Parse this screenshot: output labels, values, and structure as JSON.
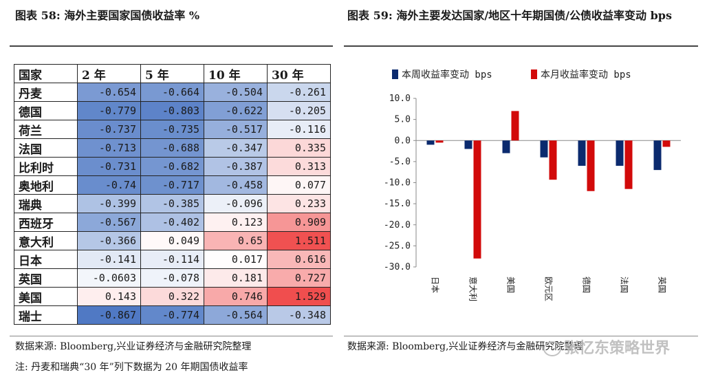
{
  "left_panel": {
    "title": "图表 58:  海外主要国家国债收益率  %",
    "headers": [
      "国家",
      "2 年",
      "5 年",
      "10 年",
      "30 年"
    ],
    "rows": [
      {
        "country": "丹麦",
        "values": [
          "-0.654",
          "-0.664",
          "-0.504",
          "-0.261"
        ],
        "nums": [
          -0.654,
          -0.664,
          -0.504,
          -0.261
        ]
      },
      {
        "country": "德国",
        "values": [
          "-0.779",
          "-0.803",
          "-0.622",
          "-0.205"
        ],
        "nums": [
          -0.779,
          -0.803,
          -0.622,
          -0.205
        ]
      },
      {
        "country": "荷兰",
        "values": [
          "-0.737",
          "-0.735",
          "-0.517",
          "-0.116"
        ],
        "nums": [
          -0.737,
          -0.735,
          -0.517,
          -0.116
        ]
      },
      {
        "country": "法国",
        "values": [
          "-0.713",
          "-0.688",
          "-0.347",
          "0.335"
        ],
        "nums": [
          -0.713,
          -0.688,
          -0.347,
          0.335
        ]
      },
      {
        "country": "比利时",
        "values": [
          "-0.731",
          "-0.682",
          "-0.387",
          "0.313"
        ],
        "nums": [
          -0.731,
          -0.682,
          -0.387,
          0.313
        ]
      },
      {
        "country": "奥地利",
        "values": [
          "-0.74",
          "-0.717",
          "-0.458",
          "0.077"
        ],
        "nums": [
          -0.74,
          -0.717,
          -0.458,
          0.077
        ]
      },
      {
        "country": "瑞典",
        "values": [
          "-0.399",
          "-0.385",
          "-0.096",
          "0.233"
        ],
        "nums": [
          -0.399,
          -0.385,
          -0.096,
          0.233
        ]
      },
      {
        "country": "西班牙",
        "values": [
          "-0.567",
          "-0.402",
          "0.123",
          "0.909"
        ],
        "nums": [
          -0.567,
          -0.402,
          0.123,
          0.909
        ]
      },
      {
        "country": "意大利",
        "values": [
          "-0.366",
          "0.049",
          "0.65",
          "1.511"
        ],
        "nums": [
          -0.366,
          0.049,
          0.65,
          1.511
        ]
      },
      {
        "country": "日本",
        "values": [
          "-0.141",
          "-0.114",
          "0.017",
          "0.616"
        ],
        "nums": [
          -0.141,
          -0.114,
          0.017,
          0.616
        ]
      },
      {
        "country": "英国",
        "values": [
          "-0.0603",
          "-0.078",
          "0.181",
          "0.727"
        ],
        "nums": [
          -0.0603,
          -0.078,
          0.181,
          0.727
        ]
      },
      {
        "country": "美国",
        "values": [
          "0.143",
          "0.322",
          "0.746",
          "1.529"
        ],
        "nums": [
          0.143,
          0.322,
          0.746,
          1.529
        ]
      },
      {
        "country": "瑞士",
        "values": [
          "-0.867",
          "-0.774",
          "-0.564",
          "-0.348"
        ],
        "nums": [
          -0.867,
          -0.774,
          -0.564,
          -0.348
        ]
      }
    ],
    "source": "数据来源:  Bloomberg,兴业证券经济与金融研究院整理",
    "note": "注:  丹麦和瑞典“30 年”列下数据为 20 年期国债收益率",
    "colors": {
      "negative": "#4f79c4",
      "positive": "#f04c4c",
      "neutral": "#ffffff"
    }
  },
  "right_panel": {
    "title": "图表 59:  海外主要发达国家/地区十年期国债/公债收益率变动  bps",
    "source": "数据来源:  Bloomberg,兴业证券经济与金融研究院整理",
    "watermark": "张忆东策略世界"
  },
  "chart_data": {
    "type": "bar",
    "categories": [
      "日本",
      "意大利",
      "美国",
      "欧元区",
      "德国",
      "法国",
      "英国"
    ],
    "series": [
      {
        "name": "本周收益率变动 bps",
        "color": "#0b2a6e",
        "values": [
          -1.0,
          -2.0,
          -3.0,
          -4.0,
          -6.0,
          -6.0,
          -7.0
        ]
      },
      {
        "name": "本月收益率变动 bps",
        "color": "#d20a0a",
        "values": [
          -0.5,
          -28.0,
          7.0,
          -9.3,
          -12.0,
          -11.5,
          -1.5
        ]
      }
    ],
    "ylim": [
      -30,
      10
    ],
    "yticks": [
      "10.0",
      "5.0",
      "0.0",
      "-5.0",
      "-10.0",
      "-15.0",
      "-20.0",
      "-25.0",
      "-30.0"
    ],
    "title": "",
    "xlabel": "",
    "ylabel": "",
    "legend_position": "top"
  }
}
